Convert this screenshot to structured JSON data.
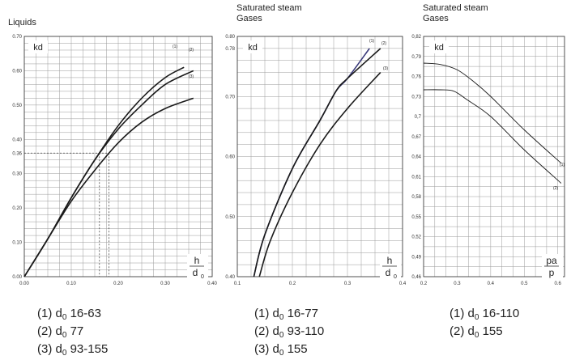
{
  "chart_data": [
    {
      "type": "line",
      "title": "Liquids",
      "ylabel": "kd",
      "xlabel": {
        "num": "h",
        "den": "d",
        "den_sub": "0"
      },
      "xlim": [
        0,
        0.4
      ],
      "ylim": [
        0,
        0.7
      ],
      "x_ticks": [
        "0.00",
        "0.10",
        "0.20",
        "0.30",
        "0.40"
      ],
      "x_tick_values": [
        0,
        0.1,
        0.2,
        0.3,
        0.4
      ],
      "y_ticks": [
        "0.00",
        "0.10",
        "0.20",
        "0.30",
        "0.36",
        "0.40",
        "0.50",
        "0.60",
        "0.70"
      ],
      "y_tick_values": [
        0,
        0.1,
        0.2,
        0.3,
        0.36,
        0.4,
        0.5,
        0.6,
        0.7
      ],
      "grid": true,
      "series": [
        {
          "name": "(1)",
          "x": [
            0,
            0.05,
            0.1,
            0.15,
            0.2,
            0.25,
            0.3,
            0.34
          ],
          "y": [
            0,
            0.11,
            0.23,
            0.34,
            0.44,
            0.52,
            0.58,
            0.61
          ]
        },
        {
          "name": "(2)",
          "x": [
            0,
            0.05,
            0.1,
            0.15,
            0.2,
            0.25,
            0.3,
            0.36
          ],
          "y": [
            0,
            0.11,
            0.23,
            0.34,
            0.43,
            0.5,
            0.56,
            0.6
          ]
        },
        {
          "name": "(3)",
          "x": [
            0,
            0.05,
            0.1,
            0.15,
            0.2,
            0.25,
            0.3,
            0.36
          ],
          "y": [
            0,
            0.11,
            0.22,
            0.31,
            0.39,
            0.45,
            0.49,
            0.52
          ]
        }
      ],
      "reference_lines": {
        "y": 0.36,
        "x": [
          0.16,
          0.18
        ]
      },
      "legend": [
        {
          "label": "(1) d",
          "sub": "0",
          "rest": " 16-63"
        },
        {
          "label": "(2) d",
          "sub": "0",
          "rest": " 77"
        },
        {
          "label": "(3) d",
          "sub": "0",
          "rest": " 93-155"
        }
      ]
    },
    {
      "type": "line",
      "title": "Saturated steam\nGases",
      "ylabel": "kd",
      "xlabel": {
        "num": "h",
        "den": "d",
        "den_sub": "0"
      },
      "xlim": [
        0.1,
        0.4
      ],
      "ylim": [
        0.4,
        0.8
      ],
      "x_ticks": [
        "0.1",
        "0.2",
        "0.3",
        "0.4"
      ],
      "x_tick_values": [
        0.1,
        0.2,
        0.3,
        0.4
      ],
      "y_ticks": [
        "0.40",
        "0.50",
        "0.60",
        "0.70",
        "0.78",
        "0.80"
      ],
      "y_tick_values": [
        0.4,
        0.5,
        0.6,
        0.7,
        0.78,
        0.8
      ],
      "grid": true,
      "series": [
        {
          "name": "(1)",
          "x": [
            0.13,
            0.15,
            0.2,
            0.25,
            0.28,
            0.3,
            0.34
          ],
          "y": [
            0.4,
            0.47,
            0.58,
            0.66,
            0.71,
            0.73,
            0.78
          ]
        },
        {
          "name": "(2)",
          "x": [
            0.13,
            0.15,
            0.2,
            0.25,
            0.28,
            0.3,
            0.36
          ],
          "y": [
            0.4,
            0.47,
            0.58,
            0.66,
            0.71,
            0.73,
            0.78
          ]
        },
        {
          "name": "(3)",
          "x": [
            0.14,
            0.16,
            0.2,
            0.25,
            0.3,
            0.36
          ],
          "y": [
            0.4,
            0.46,
            0.54,
            0.62,
            0.68,
            0.74
          ]
        }
      ],
      "legend": [
        {
          "label": "(1) d",
          "sub": "0",
          "rest": " 16-77"
        },
        {
          "label": "(2) d",
          "sub": "0",
          "rest": " 93-110"
        },
        {
          "label": "(3) d",
          "sub": "0",
          "rest": " 155"
        }
      ]
    },
    {
      "type": "line",
      "title": "Saturated steam\nGases",
      "ylabel": "kd",
      "xlabel": {
        "num": "pa",
        "den": "p"
      },
      "xlim": [
        0.2,
        0.62
      ],
      "ylim": [
        0.46,
        0.82
      ],
      "x_ticks": [
        "0.2",
        "0.3",
        "0.4",
        "0.5",
        "0.6"
      ],
      "x_tick_values": [
        0.2,
        0.3,
        0.4,
        0.5,
        0.6
      ],
      "y_ticks": [
        "0,46",
        "0,49",
        "0,52",
        "0,55",
        "0,58",
        "0,61",
        "0,64",
        "0,67",
        "0,7",
        "0,73",
        "0,76",
        "0,79",
        "0,82"
      ],
      "y_tick_values": [
        0.46,
        0.49,
        0.52,
        0.55,
        0.58,
        0.61,
        0.64,
        0.67,
        0.7,
        0.73,
        0.76,
        0.79,
        0.82
      ],
      "grid": true,
      "series": [
        {
          "name": "(1)",
          "x": [
            0.2,
            0.25,
            0.3,
            0.35,
            0.4,
            0.5,
            0.61
          ],
          "y": [
            0.78,
            0.778,
            0.77,
            0.752,
            0.73,
            0.68,
            0.63
          ]
        },
        {
          "name": "(2)",
          "x": [
            0.2,
            0.25,
            0.29,
            0.33,
            0.4,
            0.5,
            0.61
          ],
          "y": [
            0.74,
            0.74,
            0.738,
            0.725,
            0.7,
            0.65,
            0.6
          ]
        }
      ],
      "legend": [
        {
          "label": "(1) d",
          "sub": "0",
          "rest": " 16-110"
        },
        {
          "label": "(2) d",
          "sub": "0",
          "rest": " 155"
        }
      ]
    }
  ]
}
